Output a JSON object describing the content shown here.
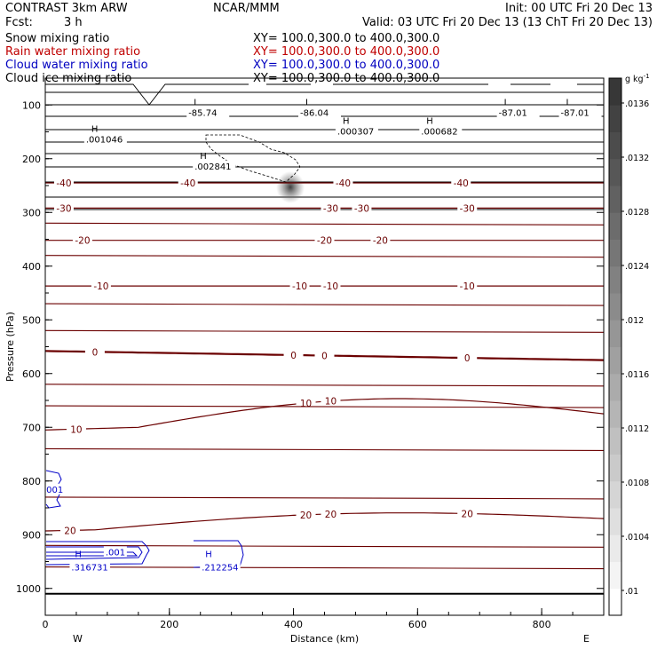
{
  "header": {
    "model": "CONTRAST  3km ARW",
    "center": "NCAR/MMM",
    "init": "Init: 00 UTC Fri 20 Dec 13",
    "fcst_label": "Fcst:",
    "fcst_value": "3 h",
    "valid": "Valid: 03 UTC Fri 20 Dec 13 (13 ChT Fri 20 Dec 13)"
  },
  "fields": [
    {
      "name": "Snow mixing ratio",
      "xy": "XY=  100.0,300.0 to 400.0,300.0",
      "color": "#000000"
    },
    {
      "name": "Rain water mixing ratio",
      "xy": "XY=  100.0,300.0 to 400.0,300.0",
      "color": "#c00000"
    },
    {
      "name": "Cloud water mixing ratio",
      "xy": "XY=  100.0,300.0 to 400.0,300.0",
      "color": "#0000c0"
    },
    {
      "name": "Cloud ice mixing ratio",
      "xy": "XY=  100.0,300.0 to 400.0,300.0",
      "color": "#000000"
    }
  ],
  "chart_data": {
    "type": "cross-section",
    "xlabel": "Distance (km)",
    "ylabel": "Pressure (hPa)",
    "xlim": [
      0,
      900
    ],
    "ylim": [
      1050,
      50
    ],
    "x_ticks": [
      0,
      200,
      400,
      600,
      800
    ],
    "y_ticks": [
      100,
      200,
      300,
      400,
      500,
      600,
      700,
      800,
      900,
      1000
    ],
    "x_end_labels": {
      "left": "W",
      "right": "E"
    },
    "colorbar": {
      "unit": "g kg",
      "unit_exp": "-1",
      "ticks": [
        ".01",
        ".0104",
        ".0108",
        ".0112",
        ".0116",
        ".012",
        ".0124",
        ".0128",
        ".0132",
        ".0136"
      ]
    },
    "temperature_contours": [
      {
        "value": "-40",
        "x": [
          0,
          900
        ],
        "p": [
          245,
          245
        ],
        "labels_at_x": [
          30,
          230,
          480,
          670
        ]
      },
      {
        "value": "-30",
        "x": [
          0,
          900
        ],
        "p": [
          292,
          292
        ],
        "labels_at_x": [
          30,
          460,
          510,
          680
        ]
      },
      {
        "value": "-20",
        "x": [
          0,
          900
        ],
        "p": [
          352,
          352
        ],
        "labels_at_x": [
          60,
          450,
          540
        ]
      },
      {
        "value": "-10",
        "x": [
          0,
          900
        ],
        "p": [
          437,
          437
        ],
        "labels_at_x": [
          90,
          410,
          460,
          680
        ]
      },
      {
        "value": "0",
        "x": [
          0,
          900
        ],
        "p": [
          558,
          575
        ],
        "labels_at_x": [
          80,
          400,
          450,
          680
        ]
      },
      {
        "value": "10",
        "x": [
          0,
          900
        ],
        "p": [
          705,
          675
        ],
        "labels_at_x": [
          50,
          420,
          460
        ]
      },
      {
        "value": "20",
        "x": [
          0,
          900
        ],
        "p": [
          893,
          870
        ],
        "labels_at_x": [
          40,
          420,
          460,
          680
        ]
      }
    ],
    "annotations": [
      {
        "type": "L",
        "label": "-85.74",
        "x": 265,
        "p": 100
      },
      {
        "type": "L",
        "label": "-86.04",
        "x": 445,
        "p": 100
      },
      {
        "type": "L",
        "label": "-87.01",
        "x": 765,
        "p": 100
      },
      {
        "type": "L",
        "label": "-87.01",
        "x": 865,
        "p": 100
      },
      {
        "type": "H",
        "label": ".001046",
        "x": 100,
        "p": 150
      },
      {
        "type": "H",
        "label": ".000307",
        "x": 505,
        "p": 135
      },
      {
        "type": "H",
        "label": ".000682",
        "x": 640,
        "p": 135
      },
      {
        "type": "H",
        "label": ".002841",
        "x": 275,
        "p": 200
      }
    ],
    "cloud_water_annotations": [
      {
        "label": ".001",
        "x": 20,
        "p": 810
      },
      {
        "label": ".001",
        "x": 120,
        "p": 927
      },
      {
        "type": "H",
        "label": ".316731",
        "x": 65,
        "p": 955
      },
      {
        "type": "H",
        "label": ".212254",
        "x": 275,
        "p": 955
      }
    ]
  }
}
